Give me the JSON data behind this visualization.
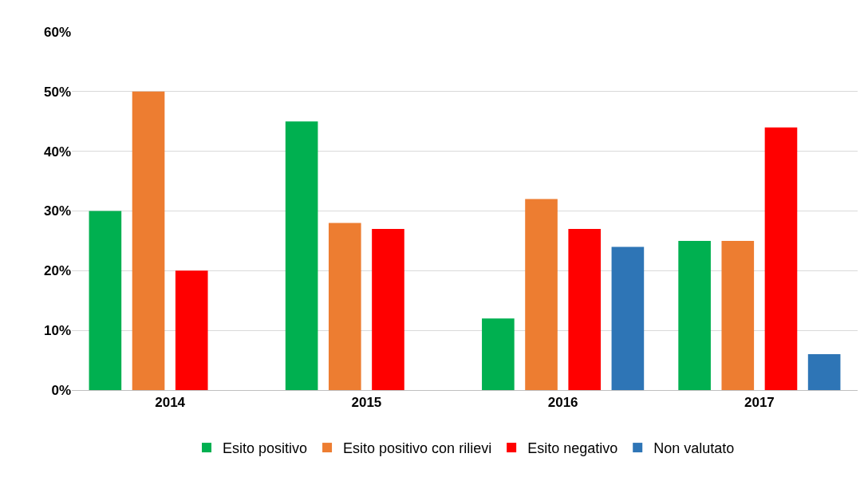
{
  "chart_data": {
    "type": "bar",
    "categories": [
      "2014",
      "2015",
      "2016",
      "2017"
    ],
    "series": [
      {
        "name": "Esito positivo",
        "color": "#00b050",
        "values": [
          30,
          45,
          12,
          25
        ]
      },
      {
        "name": "Esito positivo con rilievi",
        "color": "#ed7d31",
        "values": [
          50,
          28,
          32,
          25
        ]
      },
      {
        "name": "Esito negativo",
        "color": "#ff0000",
        "values": [
          20,
          27,
          27,
          44
        ]
      },
      {
        "name": "Non valutato",
        "color": "#2e75b6",
        "values": [
          null,
          null,
          24,
          6
        ]
      }
    ],
    "ylim": [
      0,
      60
    ],
    "yticks": [
      {
        "value": 0,
        "label": "0%"
      },
      {
        "value": 10,
        "label": "10%"
      },
      {
        "value": 20,
        "label": "20%"
      },
      {
        "value": 30,
        "label": "30%"
      },
      {
        "value": 40,
        "label": "40%"
      },
      {
        "value": 50,
        "label": "50%"
      },
      {
        "value": 60,
        "label": "60%"
      }
    ],
    "grid": "y",
    "legend": "bottom"
  }
}
